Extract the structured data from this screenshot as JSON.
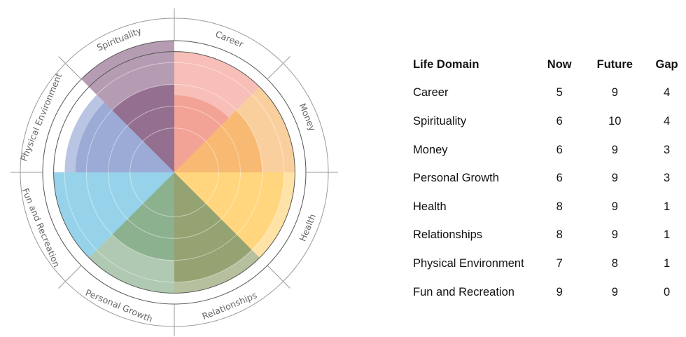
{
  "chart_data": {
    "type": "polar-area",
    "max": 10,
    "segments": [
      {
        "label": "Career",
        "color": "#f08a7c"
      },
      {
        "label": "Money",
        "color": "#f5a74e"
      },
      {
        "label": "Health",
        "color": "#ffcb5c"
      },
      {
        "label": "Relationships",
        "color": "#7a8a4e"
      },
      {
        "label": "Personal Growth",
        "color": "#6f9c72"
      },
      {
        "label": "Fun and Recreation",
        "color": "#7cc9e6"
      },
      {
        "label": "Physical Environment",
        "color": "#8196cc"
      },
      {
        "label": "Spirituality",
        "color": "#7a4a72"
      }
    ],
    "series": [
      {
        "key": "now",
        "values": [
          5,
          6,
          8,
          8,
          6,
          9,
          7,
          6
        ]
      },
      {
        "key": "future",
        "values": [
          9,
          9,
          9,
          9,
          9,
          9,
          8,
          10
        ]
      }
    ]
  },
  "table": {
    "headers": {
      "domain": "Life Domain",
      "now": "Now",
      "future": "Future",
      "gap": "Gap"
    },
    "rows": [
      {
        "domain": "Career",
        "now": "5",
        "future": "9",
        "gap": "4"
      },
      {
        "domain": "Spirituality",
        "now": "6",
        "future": "10",
        "gap": "4"
      },
      {
        "domain": "Money",
        "now": "6",
        "future": "9",
        "gap": "3"
      },
      {
        "domain": "Personal Growth",
        "now": "6",
        "future": "9",
        "gap": "3"
      },
      {
        "domain": "Health",
        "now": "8",
        "future": "9",
        "gap": "1"
      },
      {
        "domain": "Relationships",
        "now": "8",
        "future": "9",
        "gap": "1"
      },
      {
        "domain": "Physical Environment",
        "now": "7",
        "future": "8",
        "gap": "1"
      },
      {
        "domain": "Fun and Recreation",
        "now": "9",
        "future": "9",
        "gap": "0"
      }
    ]
  }
}
